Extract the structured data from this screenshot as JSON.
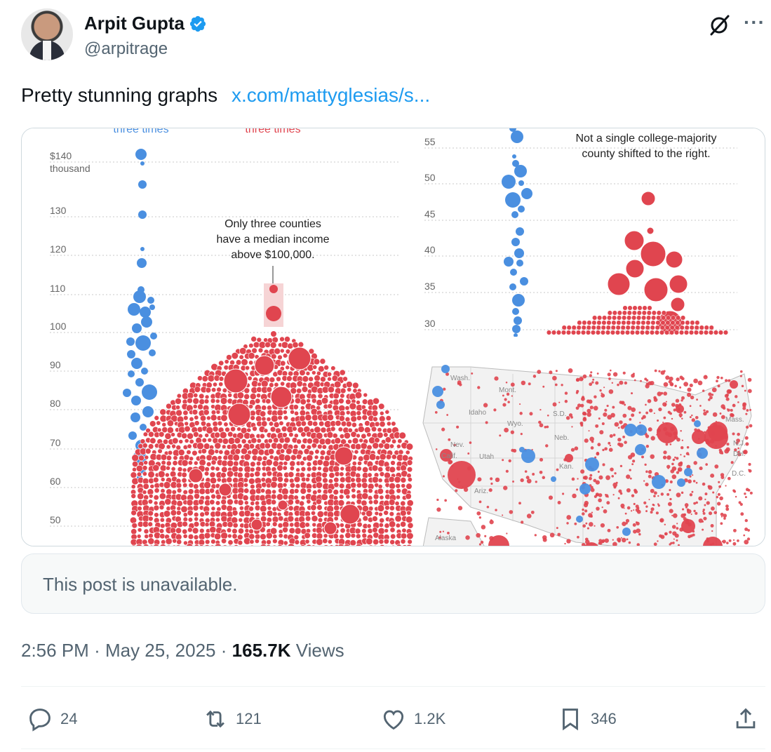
{
  "author": {
    "name": "Arpit Gupta",
    "handle": "@arpitrage"
  },
  "tweet": {
    "text": "Pretty stunning graphs",
    "link": "x.com/mattyglesias/s..."
  },
  "media": {
    "left_chart": {
      "top_labels": [
        "three times",
        "three times"
      ],
      "y_unit": "thousand",
      "y_ticks": [
        "$140",
        "130",
        "120",
        "110",
        "100",
        "90",
        "80",
        "70",
        "60",
        "50"
      ],
      "annotation": [
        "Only three counties",
        "have a median income",
        "above $100,000."
      ]
    },
    "right_chart": {
      "y_ticks": [
        "55",
        "50",
        "45",
        "40",
        "35",
        "30"
      ],
      "annotation": [
        "Not a single college-majority",
        "county shifted to the right."
      ]
    },
    "map": {
      "labels": [
        "Wash.",
        "Mont.",
        "Idaho",
        "Wyo.",
        "S.D.",
        "Neb.",
        "Nev.",
        "Utah",
        "Calif.",
        "Ariz.",
        "Kan.",
        "Alaska",
        "N.J.",
        "Del.",
        "D.C.",
        "Mass."
      ]
    },
    "colors": {
      "blue": "#4a8fe0",
      "red": "#e0454f"
    }
  },
  "quoted_post": {
    "text": "This post is unavailable."
  },
  "meta": {
    "time": "2:56 PM",
    "separator": "·",
    "date": "May 25, 2025",
    "views_count": "165.7K",
    "views_label": "Views"
  },
  "actions": {
    "replies": "24",
    "reposts": "121",
    "likes": "1.2K",
    "bookmarks": "346"
  },
  "icons": [
    "verified-badge-icon",
    "grok-icon",
    "more-icon",
    "reply-icon",
    "repost-icon",
    "like-icon",
    "bookmark-icon",
    "share-icon"
  ]
}
